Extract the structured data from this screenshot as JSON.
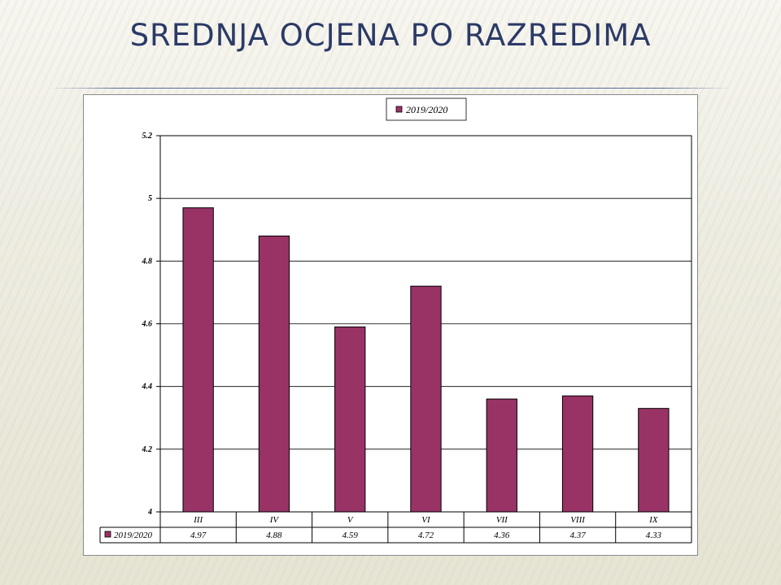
{
  "slide": {
    "title": "SREDNJA OCJENA PO RAZREDIMA"
  },
  "chart_data": {
    "type": "bar",
    "categories": [
      "III",
      "IV",
      "V",
      "VI",
      "VII",
      "VIII",
      "IX"
    ],
    "series": [
      {
        "name": "2019/2020",
        "values": [
          4.97,
          4.88,
          4.59,
          4.72,
          4.36,
          4.37,
          4.33
        ],
        "color": "#993366"
      }
    ],
    "value_labels": [
      "4.97",
      "4.88",
      "4.59",
      "4.72",
      "4.36",
      "4.37",
      "4.33"
    ],
    "ylim": [
      4,
      5.2
    ],
    "yticks": [
      "4",
      "4.2",
      "4.4",
      "4.6",
      "4.8",
      "5",
      "5.2"
    ],
    "title": "",
    "xlabel": "",
    "ylabel": "",
    "grid": true,
    "legend_position": "top-center",
    "data_table": true
  }
}
